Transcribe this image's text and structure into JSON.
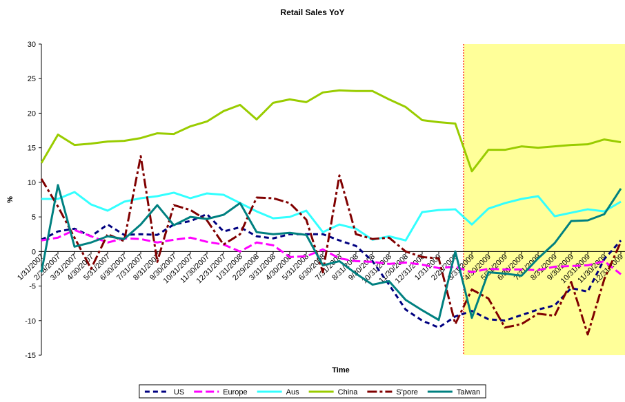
{
  "chart_data": {
    "type": "line",
    "title": "Retail Sales YoY",
    "xlabel": "Time",
    "ylabel": "%",
    "categories": [
      "1/31/2007",
      "2/28/2007",
      "3/31/2007",
      "4/30/2007",
      "5/31/2007",
      "6/30/2007",
      "7/31/2007",
      "8/31/2007",
      "9/30/2007",
      "10/31/2007",
      "11/30/2007",
      "12/31/2007",
      "1/31/2008",
      "2/29/2008",
      "3/31/2008",
      "4/30/2008",
      "5/31/2008",
      "6/30/2008",
      "7/31/2008",
      "8/31/2008",
      "9/30/2008",
      "10/31/2008",
      "11/30/2008",
      "12/31/2008",
      "1/31/2009",
      "2/28/2009",
      "3/31/2009",
      "4/30/2009",
      "5/31/2009",
      "6/30/2009",
      "7/31/2009",
      "8/31/2009",
      "9/30/2009",
      "10/31/2009",
      "11/30/2009",
      "12/31/2009"
    ],
    "series": [
      {
        "name": "US",
        "color": "#000080",
        "dash": "7,5",
        "values": [
          1.7,
          2.9,
          3.3,
          2.2,
          3.9,
          2.4,
          2.5,
          2.4,
          3.9,
          4.4,
          5.4,
          2.9,
          3.5,
          2.2,
          1.9,
          2.5,
          2.5,
          2.5,
          1.6,
          0.8,
          -1.4,
          -4.8,
          -8.4,
          -10.0,
          -11.0,
          -9.4,
          -8.6,
          -9.8,
          -10.0,
          -9.2,
          -8.4,
          -7.8,
          -5.3,
          -5.8,
          -1.1,
          1.6
        ]
      },
      {
        "name": "Europe",
        "color": "#ff00ff",
        "dash": "12,5",
        "values": [
          1.6,
          2.0,
          3.1,
          2.2,
          1.3,
          1.9,
          1.8,
          1.3,
          1.7,
          2.0,
          1.4,
          1.0,
          0.0,
          1.3,
          0.9,
          -0.8,
          -0.7,
          0.3,
          -1.0,
          -1.4,
          -1.5,
          -1.8,
          -1.6,
          -1.9,
          -2.4,
          -2.2,
          -3.0,
          -2.5,
          -2.6,
          -2.6,
          -2.7,
          -2.2,
          -2.1,
          -2.0,
          -1.4,
          -3.3
        ]
      },
      {
        "name": "Aus",
        "color": "#33ffff",
        "dash": "",
        "values": [
          7.6,
          7.6,
          8.6,
          6.8,
          5.9,
          7.2,
          7.7,
          8.0,
          8.5,
          7.7,
          8.4,
          8.2,
          7.0,
          5.8,
          4.8,
          5.0,
          5.9,
          2.8,
          3.9,
          3.3,
          1.7,
          2.2,
          1.6,
          5.7,
          6.0,
          6.1,
          3.9,
          6.2,
          7.0,
          7.6,
          8.0,
          5.1,
          5.6,
          6.1,
          5.8,
          7.2
        ]
      },
      {
        "name": "China",
        "color": "#99cc00",
        "dash": "",
        "values": [
          12.8,
          16.9,
          15.4,
          15.6,
          15.9,
          16.0,
          16.4,
          17.1,
          17.0,
          18.1,
          18.8,
          20.3,
          21.2,
          19.1,
          21.5,
          22.0,
          21.6,
          23.0,
          23.3,
          23.2,
          23.2,
          22.0,
          20.9,
          19.0,
          18.7,
          18.5,
          11.6,
          14.7,
          14.7,
          15.2,
          15.0,
          15.2,
          15.4,
          15.5,
          16.2,
          15.8
        ]
      },
      {
        "name": "S'pore",
        "color": "#800000",
        "dash": "14,4,4,4",
        "values": [
          10.5,
          6.5,
          2.0,
          -2.5,
          2.5,
          1.5,
          13.8,
          -1.5,
          6.7,
          6.0,
          4.5,
          1.0,
          2.5,
          7.8,
          7.7,
          7.0,
          4.6,
          -3.0,
          11.0,
          2.5,
          1.8,
          2.0,
          0.0,
          -0.8,
          -1.0,
          -10.5,
          -5.5,
          -6.8,
          -11.0,
          -10.5,
          -9.0,
          -9.3,
          -4.4,
          -12.0,
          -4.0,
          1.4
        ]
      },
      {
        "name": "Taiwan",
        "color": "#008080",
        "dash": "",
        "values": [
          -3.0,
          9.6,
          0.7,
          1.3,
          2.2,
          1.8,
          3.9,
          6.7,
          3.8,
          5.0,
          4.7,
          5.3,
          7.0,
          2.8,
          2.5,
          2.7,
          2.4,
          -2.0,
          -1.4,
          -3.2,
          -4.8,
          -4.3,
          -7.0,
          -8.5,
          -9.9,
          0.0,
          -9.6,
          -3.0,
          -3.2,
          -3.5,
          -1.0,
          1.2,
          4.4,
          4.5,
          5.4,
          9.1
        ]
      }
    ],
    "ylim": [
      -15,
      30
    ],
    "yticks": [
      -15,
      -10,
      -5,
      0,
      5,
      10,
      15,
      20,
      25,
      30
    ],
    "legend": "bottom"
  }
}
